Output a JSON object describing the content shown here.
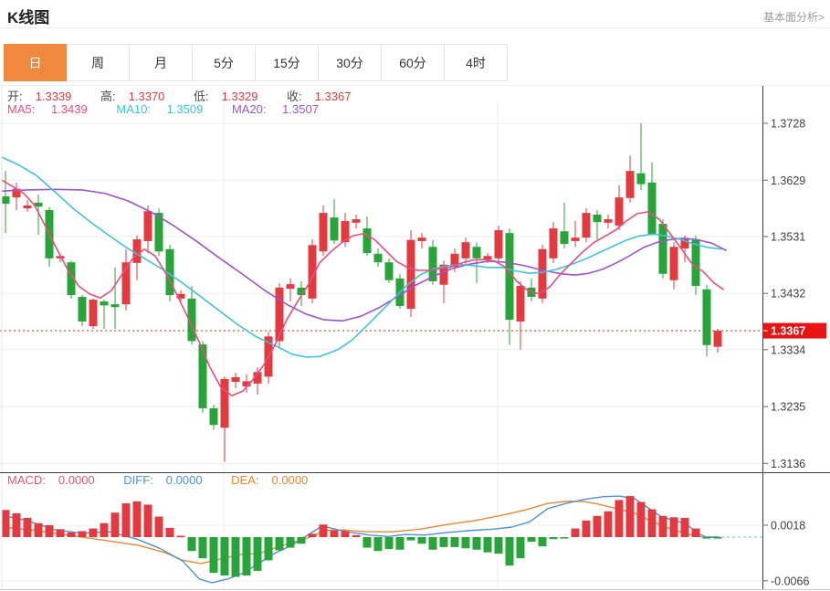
{
  "header": {
    "title": "K线图",
    "link": "基本面分析>"
  },
  "tabs": [
    {
      "key": "day",
      "label": "日",
      "active": true
    },
    {
      "key": "week",
      "label": "周",
      "active": false
    },
    {
      "key": "month",
      "label": "月",
      "active": false
    },
    {
      "key": "5min",
      "label": "5分",
      "active": false
    },
    {
      "key": "15min",
      "label": "15分",
      "active": false
    },
    {
      "key": "30min",
      "label": "30分",
      "active": false
    },
    {
      "key": "60min",
      "label": "60分",
      "active": false
    },
    {
      "key": "4hour",
      "label": "4时",
      "active": false
    }
  ],
  "ohlc_legend": {
    "open_label": "开:",
    "open_value": "1.3339",
    "high_label": "高:",
    "high_value": "1.3370",
    "low_label": "低:",
    "low_value": "1.3329",
    "close_label": "收:",
    "close_value": "1.3367"
  },
  "ma_legend": {
    "ma5_label": "MA5:",
    "ma5_value": "1.3439",
    "ma10_label": "MA10:",
    "ma10_value": "1.3509",
    "ma20_label": "MA20:",
    "ma20_value": "1.3507"
  },
  "macd_legend": {
    "macd_label": "MACD:",
    "macd_value": "0.0000",
    "diff_label": "DIFF:",
    "diff_value": "0.0000",
    "dea_label": "DEA:",
    "dea_value": "0.0000"
  },
  "colors": {
    "up_red": "#e13b41",
    "down_green": "#28a43a",
    "ma5_pink": "#ed4c7d",
    "ma10_cyan": "#3fc3dc",
    "ma20_purple": "#9d54cc",
    "diff_blue": "#4a90e2",
    "dea_orange": "#f0862e",
    "macd_text_red": "#e05a65",
    "tab_orange": "#f0883d",
    "price_tag_red": "#e81414",
    "dotted_line": "#f4623c",
    "grid": "#ececec",
    "frame": "#3c3c3c",
    "axis_text": "#3f3f3f",
    "dash_tail": "#9fc6e8"
  },
  "chart_data": {
    "type": "candlestick+macd",
    "price_axis_ticks": [
      {
        "label": "1.3728",
        "value": 1.3728
      },
      {
        "label": "1.3629",
        "value": 1.3629
      },
      {
        "label": "1.3531",
        "value": 1.3531
      },
      {
        "label": "1.3432",
        "value": 1.3432
      },
      {
        "label": "1.3334",
        "value": 1.3334
      },
      {
        "label": "1.3235",
        "value": 1.3235
      },
      {
        "label": "1.3136",
        "value": 1.3136
      }
    ],
    "current_price": {
      "label": "1.3367",
      "value": 1.3367
    },
    "macd_axis_ticks": [
      {
        "label": "0.0018",
        "value": 18
      },
      {
        "label": "-0.0066",
        "value": -66
      }
    ],
    "candles": [
      [
        1.3601,
        1.3645,
        1.3537,
        1.3588
      ],
      [
        1.3599,
        1.3625,
        1.3577,
        1.3614
      ],
      [
        1.358,
        1.3594,
        1.3574,
        1.3585
      ],
      [
        1.359,
        1.3604,
        1.3534,
        1.3583
      ],
      [
        1.3577,
        1.3582,
        1.3478,
        1.3493
      ],
      [
        1.3493,
        1.3501,
        1.3486,
        1.3497
      ],
      [
        1.3486,
        1.3489,
        1.3423,
        1.3429
      ],
      [
        1.3426,
        1.3429,
        1.3375,
        1.3383
      ],
      [
        1.3375,
        1.3423,
        1.337,
        1.3421
      ],
      [
        1.3418,
        1.3421,
        1.337,
        1.3411
      ],
      [
        1.3413,
        1.3477,
        1.337,
        1.3408
      ],
      [
        1.3413,
        1.3509,
        1.3402,
        1.3486
      ],
      [
        1.3485,
        1.3533,
        1.3455,
        1.3526
      ],
      [
        1.3523,
        1.3585,
        1.3502,
        1.3575
      ],
      [
        1.3572,
        1.358,
        1.3497,
        1.3505
      ],
      [
        1.3509,
        1.3517,
        1.3418,
        1.3429
      ],
      [
        1.3423,
        1.3437,
        1.3415,
        1.3431
      ],
      [
        1.3423,
        1.3445,
        1.3343,
        1.3349
      ],
      [
        1.3343,
        1.3349,
        1.3224,
        1.3232
      ],
      [
        1.3232,
        1.3238,
        1.3195,
        1.3203
      ],
      [
        1.3198,
        1.3287,
        1.3139,
        1.3283
      ],
      [
        1.3278,
        1.3294,
        1.3267,
        1.3286
      ],
      [
        1.327,
        1.3291,
        1.3259,
        1.3279
      ],
      [
        1.3275,
        1.3303,
        1.3256,
        1.3295
      ],
      [
        1.3287,
        1.3365,
        1.3275,
        1.3357
      ],
      [
        1.3349,
        1.345,
        1.3338,
        1.3442
      ],
      [
        1.344,
        1.3458,
        1.3418,
        1.3448
      ],
      [
        1.3442,
        1.3453,
        1.341,
        1.3429
      ],
      [
        1.3423,
        1.3526,
        1.3415,
        1.3516
      ],
      [
        1.3505,
        1.3585,
        1.3497,
        1.3572
      ],
      [
        1.3564,
        1.3596,
        1.3518,
        1.3524
      ],
      [
        1.3521,
        1.3572,
        1.3513,
        1.3558
      ],
      [
        1.3555,
        1.3569,
        1.3545,
        1.3561
      ],
      [
        1.3545,
        1.3566,
        1.3497,
        1.3502
      ],
      [
        1.3501,
        1.351,
        1.3478,
        1.3486
      ],
      [
        1.3486,
        1.3493,
        1.345,
        1.3455
      ],
      [
        1.3458,
        1.3466,
        1.3405,
        1.341
      ],
      [
        1.3405,
        1.3542,
        1.3391,
        1.3525
      ],
      [
        1.3523,
        1.3537,
        1.351,
        1.3529
      ],
      [
        1.3513,
        1.3525,
        1.3447,
        1.3453
      ],
      [
        1.3447,
        1.3489,
        1.3415,
        1.3482
      ],
      [
        1.3478,
        1.351,
        1.3469,
        1.3501
      ],
      [
        1.3493,
        1.3529,
        1.3482,
        1.3521
      ],
      [
        1.3513,
        1.3521,
        1.345,
        1.3493
      ],
      [
        1.3491,
        1.3502,
        1.3485,
        1.3497
      ],
      [
        1.3493,
        1.355,
        1.3485,
        1.3542
      ],
      [
        1.3537,
        1.3545,
        1.3342,
        1.3386
      ],
      [
        1.3383,
        1.3453,
        1.3334,
        1.3445
      ],
      [
        1.3442,
        1.3458,
        1.3418,
        1.3426
      ],
      [
        1.3423,
        1.3517,
        1.3415,
        1.3509
      ],
      [
        1.3493,
        1.3556,
        1.3485,
        1.3545
      ],
      [
        1.354,
        1.359,
        1.351,
        1.3518
      ],
      [
        1.3523,
        1.3558,
        1.3513,
        1.3529
      ],
      [
        1.3529,
        1.358,
        1.3521,
        1.3572
      ],
      [
        1.3569,
        1.3577,
        1.3525,
        1.3556
      ],
      [
        1.3555,
        1.3569,
        1.3545,
        1.3561
      ],
      [
        1.355,
        1.362,
        1.3542,
        1.3599
      ],
      [
        1.3598,
        1.3672,
        1.359,
        1.3645
      ],
      [
        1.3641,
        1.3728,
        1.3612,
        1.3622
      ],
      [
        1.3625,
        1.366,
        1.3533,
        1.3534
      ],
      [
        1.3553,
        1.3561,
        1.3458,
        1.3466
      ],
      [
        1.3455,
        1.3521,
        1.3439,
        1.3513
      ],
      [
        1.351,
        1.3533,
        1.3486,
        1.3526
      ],
      [
        1.3525,
        1.3533,
        1.3429,
        1.3445
      ],
      [
        1.3439,
        1.3447,
        1.3322,
        1.3342
      ],
      [
        1.3339,
        1.337,
        1.3329,
        1.3367
      ]
    ],
    "ma5_line": [
      [
        2,
        1.3629
      ],
      [
        14,
        1.3618
      ],
      [
        26,
        1.3606
      ],
      [
        38,
        1.3585
      ],
      [
        50,
        1.3548
      ],
      [
        62,
        1.351
      ],
      [
        74,
        1.3474
      ],
      [
        86,
        1.3445
      ],
      [
        98,
        1.3431
      ],
      [
        110,
        1.3424
      ],
      [
        122,
        1.3437
      ],
      [
        134,
        1.3466
      ],
      [
        146,
        1.3494
      ],
      [
        158,
        1.3509
      ],
      [
        170,
        1.3497
      ],
      [
        182,
        1.3466
      ],
      [
        194,
        1.3429
      ],
      [
        206,
        1.3389
      ],
      [
        218,
        1.3348
      ],
      [
        230,
        1.3303
      ],
      [
        242,
        1.3268
      ],
      [
        254,
        1.3254
      ],
      [
        266,
        1.3262
      ],
      [
        278,
        1.3284
      ],
      [
        290,
        1.331
      ],
      [
        302,
        1.3345
      ],
      [
        314,
        1.3386
      ],
      [
        326,
        1.3418
      ],
      [
        338,
        1.3448
      ],
      [
        350,
        1.3485
      ],
      [
        362,
        1.3504
      ],
      [
        374,
        1.352
      ],
      [
        386,
        1.3532
      ],
      [
        398,
        1.3536
      ],
      [
        410,
        1.3526
      ],
      [
        422,
        1.3507
      ],
      [
        434,
        1.3488
      ],
      [
        446,
        1.3477
      ],
      [
        458,
        1.3472
      ],
      [
        470,
        1.3472
      ],
      [
        482,
        1.3475
      ],
      [
        494,
        1.3478
      ],
      [
        506,
        1.3485
      ],
      [
        518,
        1.349
      ],
      [
        530,
        1.3491
      ],
      [
        542,
        1.3488
      ],
      [
        554,
        1.3477
      ],
      [
        566,
        1.3453
      ],
      [
        578,
        1.3437
      ],
      [
        590,
        1.3431
      ],
      [
        602,
        1.3443
      ],
      [
        614,
        1.3466
      ],
      [
        626,
        1.3485
      ],
      [
        638,
        1.3504
      ],
      [
        650,
        1.352
      ],
      [
        662,
        1.3531
      ],
      [
        674,
        1.3542
      ],
      [
        686,
        1.3558
      ],
      [
        698,
        1.3571
      ],
      [
        710,
        1.3574
      ],
      [
        722,
        1.3561
      ],
      [
        734,
        1.3536
      ],
      [
        746,
        1.351
      ],
      [
        758,
        1.3483
      ],
      [
        770,
        1.347
      ],
      [
        782,
        1.345
      ],
      [
        792,
        1.3439
      ]
    ],
    "ma10_line": [
      [
        2,
        1.3669
      ],
      [
        20,
        1.3656
      ],
      [
        40,
        1.3637
      ],
      [
        60,
        1.3609
      ],
      [
        80,
        1.358
      ],
      [
        100,
        1.3555
      ],
      [
        120,
        1.3532
      ],
      [
        140,
        1.351
      ],
      [
        160,
        1.3491
      ],
      [
        180,
        1.3472
      ],
      [
        200,
        1.345
      ],
      [
        220,
        1.3426
      ],
      [
        240,
        1.3402
      ],
      [
        260,
        1.3378
      ],
      [
        280,
        1.3357
      ],
      [
        300,
        1.3342
      ],
      [
        320,
        1.3326
      ],
      [
        335,
        1.3321
      ],
      [
        350,
        1.3322
      ],
      [
        370,
        1.3334
      ],
      [
        385,
        1.335
      ],
      [
        400,
        1.3373
      ],
      [
        415,
        1.3397
      ],
      [
        430,
        1.3421
      ],
      [
        445,
        1.3445
      ],
      [
        460,
        1.3464
      ],
      [
        475,
        1.3475
      ],
      [
        490,
        1.348
      ],
      [
        505,
        1.3482
      ],
      [
        520,
        1.348
      ],
      [
        535,
        1.3477
      ],
      [
        550,
        1.3477
      ],
      [
        565,
        1.3471
      ],
      [
        580,
        1.3467
      ],
      [
        595,
        1.3469
      ],
      [
        610,
        1.3474
      ],
      [
        625,
        1.3482
      ],
      [
        640,
        1.3491
      ],
      [
        655,
        1.3502
      ],
      [
        670,
        1.3513
      ],
      [
        685,
        1.3524
      ],
      [
        700,
        1.3532
      ],
      [
        715,
        1.3535
      ],
      [
        730,
        1.3532
      ],
      [
        745,
        1.3526
      ],
      [
        760,
        1.3518
      ],
      [
        775,
        1.3512
      ],
      [
        790,
        1.3509
      ]
    ],
    "ma20_line": [
      [
        2,
        1.361
      ],
      [
        30,
        1.3612
      ],
      [
        60,
        1.3613
      ],
      [
        90,
        1.3612
      ],
      [
        115,
        1.3606
      ],
      [
        140,
        1.3593
      ],
      [
        165,
        1.3574
      ],
      [
        190,
        1.355
      ],
      [
        215,
        1.3523
      ],
      [
        240,
        1.3494
      ],
      [
        265,
        1.3466
      ],
      [
        290,
        1.3437
      ],
      [
        315,
        1.3412
      ],
      [
        335,
        1.3396
      ],
      [
        355,
        1.3386
      ],
      [
        375,
        1.3384
      ],
      [
        395,
        1.3392
      ],
      [
        415,
        1.3407
      ],
      [
        435,
        1.3426
      ],
      [
        455,
        1.3446
      ],
      [
        475,
        1.3462
      ],
      [
        495,
        1.3475
      ],
      [
        515,
        1.3483
      ],
      [
        535,
        1.3488
      ],
      [
        555,
        1.3486
      ],
      [
        575,
        1.348
      ],
      [
        595,
        1.3472
      ],
      [
        615,
        1.3466
      ],
      [
        630,
        1.3464
      ],
      [
        645,
        1.3467
      ],
      [
        660,
        1.3474
      ],
      [
        675,
        1.3485
      ],
      [
        690,
        1.3498
      ],
      [
        705,
        1.3512
      ],
      [
        720,
        1.3521
      ],
      [
        735,
        1.3526
      ],
      [
        750,
        1.3528
      ],
      [
        765,
        1.3525
      ],
      [
        780,
        1.3519
      ],
      [
        795,
        1.3507
      ]
    ],
    "macd_histogram": [
      41,
      36,
      29,
      21,
      18,
      12,
      7,
      9,
      13,
      21,
      37,
      51,
      54,
      49,
      31,
      14,
      2,
      -21,
      -32,
      -54,
      -58,
      -60,
      -58,
      -51,
      -35,
      -20,
      -16,
      -10,
      5,
      19,
      10,
      9,
      3,
      -16,
      -21,
      -18,
      -19,
      -5,
      -10,
      -19,
      -15,
      -15,
      -17,
      -19,
      -23,
      -25,
      -43,
      -32,
      -7,
      -14,
      -3,
      -1,
      13,
      25,
      32,
      39,
      56,
      62,
      53,
      42,
      32,
      30,
      29,
      13,
      -2,
      -1
    ],
    "diff_line": [
      [
        2,
        33
      ],
      [
        30,
        25
      ],
      [
        60,
        11
      ],
      [
        90,
        6
      ],
      [
        120,
        8
      ],
      [
        150,
        -3
      ],
      [
        175,
        -17
      ],
      [
        200,
        -36
      ],
      [
        218,
        -63
      ],
      [
        232,
        -69
      ],
      [
        250,
        -63
      ],
      [
        265,
        -55
      ],
      [
        283,
        -40
      ],
      [
        300,
        -25
      ],
      [
        320,
        -12
      ],
      [
        338,
        4
      ],
      [
        353,
        17
      ],
      [
        370,
        11
      ],
      [
        385,
        7
      ],
      [
        405,
        3
      ],
      [
        425,
        1
      ],
      [
        445,
        4
      ],
      [
        465,
        3
      ],
      [
        490,
        7
      ],
      [
        515,
        10
      ],
      [
        540,
        12
      ],
      [
        560,
        15
      ],
      [
        580,
        23
      ],
      [
        600,
        43
      ],
      [
        620,
        51
      ],
      [
        640,
        57
      ],
      [
        660,
        61
      ],
      [
        678,
        62
      ],
      [
        695,
        58
      ],
      [
        710,
        44
      ],
      [
        725,
        30
      ],
      [
        740,
        25
      ],
      [
        752,
        19
      ],
      [
        763,
        7
      ],
      [
        773,
        0
      ],
      [
        788,
        0
      ]
    ],
    "dea_line": [
      [
        2,
        15
      ],
      [
        40,
        10
      ],
      [
        80,
        2
      ],
      [
        120,
        -6
      ],
      [
        150,
        -12
      ],
      [
        180,
        -23
      ],
      [
        200,
        -35
      ],
      [
        220,
        -40
      ],
      [
        245,
        -32
      ],
      [
        265,
        -26
      ],
      [
        283,
        -25
      ],
      [
        300,
        -17
      ],
      [
        320,
        -8
      ],
      [
        340,
        0
      ],
      [
        355,
        10
      ],
      [
        375,
        11
      ],
      [
        400,
        8
      ],
      [
        430,
        8
      ],
      [
        460,
        12
      ],
      [
        490,
        19
      ],
      [
        520,
        25
      ],
      [
        550,
        33
      ],
      [
        575,
        41
      ],
      [
        600,
        51
      ],
      [
        620,
        54
      ],
      [
        638,
        54
      ],
      [
        655,
        50
      ],
      [
        675,
        43
      ],
      [
        695,
        36
      ],
      [
        715,
        23
      ],
      [
        735,
        12
      ],
      [
        755,
        4
      ],
      [
        770,
        0
      ],
      [
        785,
        0
      ]
    ]
  }
}
